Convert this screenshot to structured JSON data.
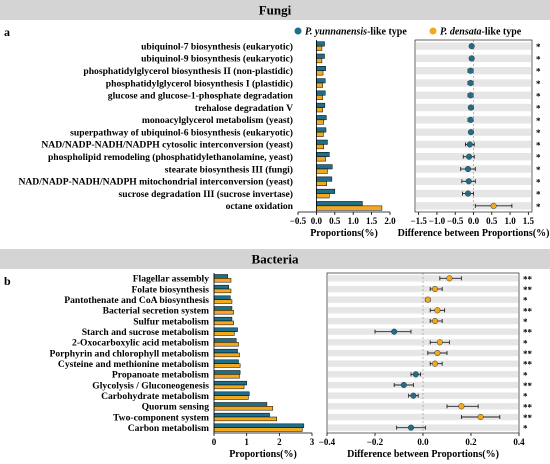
{
  "colors": {
    "yunnanensis": "#1F6F8B",
    "densata": "#F2A91E",
    "header_bg": "#D4D4D4",
    "stripe": "#E6E6E6"
  },
  "legend": {
    "yunnanensis": "P. yunnanensis",
    "yunnanensis_suffix": "-like type",
    "densata": "P. densata",
    "densata_suffix": "-like type"
  },
  "chart_data": [
    {
      "type": "bar",
      "title": "Fungi",
      "panel_label": "a",
      "xlabel_left": "Proportions(%)",
      "xlabel_right": "Difference between Proportions(%)",
      "left_xlim": [
        -0.5,
        2.0
      ],
      "left_ticks": [
        "−0.5",
        "0.0",
        "0.5",
        "1.0",
        "1.5",
        "2.0"
      ],
      "left_tick_values": [
        -0.5,
        0.0,
        0.5,
        1.0,
        1.5,
        2.0
      ],
      "right_xlim": [
        -1.6,
        1.6
      ],
      "right_ticks": [
        "−1.5",
        "−1.0",
        "−0.5",
        "0.0",
        "0.5",
        "1.0",
        "1.5"
      ],
      "right_tick_values": [
        -1.5,
        -1.0,
        -0.5,
        0.0,
        0.5,
        1.0,
        1.5
      ],
      "categories": [
        "ubiquinol-7 biosynthesis (eukaryotic)",
        "ubiquinol-9 biosynthesis (eukaryotic)",
        "phosphatidylglycerol biosynthesis II (non-plastidic)",
        "phosphatidylglycerol biosynthesis I (plastidic)",
        "glucose and glucose-1-phosphate degradation",
        "trehalose degradation V",
        "monoacylglycerol metabolism (yeast)",
        "superpathway of ubiquinol-6 biosynthesis (eukaryotic)",
        "NAD/NADP-NADH/NADPH cytosolic interconversion (yeast)",
        "phospholipid remodeling (phosphatidylethanolamine, yeast)",
        "stearate biosynthesis III (fungi)",
        "NAD/NADP-NADH/NADPH mitochondrial interconversion (yeast)",
        "sucrose degradation III (sucrose invertase)",
        "octane oxidation"
      ],
      "series": [
        {
          "name": "P. yunnanensis-like type",
          "values": [
            0.22,
            0.22,
            0.25,
            0.24,
            0.24,
            0.23,
            0.27,
            0.26,
            0.3,
            0.35,
            0.43,
            0.42,
            0.5,
            1.25
          ]
        },
        {
          "name": "P. densata-like type",
          "values": [
            0.15,
            0.15,
            0.18,
            0.17,
            0.17,
            0.17,
            0.2,
            0.19,
            0.2,
            0.25,
            0.3,
            0.28,
            0.35,
            1.78
          ]
        }
      ],
      "difference": [
        -0.05,
        -0.05,
        -0.08,
        -0.08,
        -0.08,
        -0.07,
        -0.08,
        -0.07,
        -0.1,
        -0.12,
        -0.15,
        -0.13,
        -0.15,
        0.55
      ],
      "ci_low": [
        -0.1,
        -0.1,
        -0.15,
        -0.15,
        -0.15,
        -0.13,
        -0.15,
        -0.12,
        -0.22,
        -0.28,
        -0.35,
        -0.32,
        -0.3,
        0.05
      ],
      "ci_high": [
        0.0,
        0.0,
        -0.02,
        -0.02,
        -0.02,
        -0.01,
        -0.02,
        -0.02,
        0.02,
        0.02,
        0.05,
        0.05,
        0.0,
        1.05
      ],
      "higher_group": [
        "y",
        "y",
        "y",
        "y",
        "y",
        "y",
        "y",
        "y",
        "y",
        "y",
        "y",
        "y",
        "y",
        "d"
      ],
      "significance": [
        "*",
        "*",
        "*",
        "*",
        "*",
        "*",
        "*",
        "*",
        "*",
        "*",
        "*",
        "*",
        "*",
        "*"
      ]
    },
    {
      "type": "bar",
      "title": "Bacteria",
      "panel_label": "b",
      "xlabel_left": "Proportions(%)",
      "xlabel_right": "Difference between Proportions(%)",
      "left_xlim": [
        0,
        3
      ],
      "left_ticks": [
        "0",
        "1",
        "2",
        "3"
      ],
      "left_tick_values": [
        0,
        1,
        2,
        3
      ],
      "right_xlim": [
        -0.4,
        0.4
      ],
      "right_ticks": [
        "−0.4",
        "−0.2",
        "0.0",
        "0.2",
        "0.4"
      ],
      "right_tick_values": [
        -0.4,
        -0.2,
        0.0,
        0.2,
        0.4
      ],
      "categories": [
        "Flagellar assembly",
        "Folate biosynthesis",
        "Pantothenate and CoA biosynthesis",
        "Bacterial secretion system",
        "Sulfur metabolism",
        "Starch and sucrose metabolism",
        "2-Oxocarboxylic acid metabolism",
        "Porphyrin and chlorophyll metabolism",
        "Cysteine and methionine metabolism",
        "Propanoate metabolism",
        "Glycolysis / Gluconeogenesis",
        "Carbohydrate metabolism",
        "Quorum sensing",
        "Two-component system",
        "Carbon metabolism"
      ],
      "series": [
        {
          "name": "P. yunnanensis-like type",
          "values": [
            0.42,
            0.45,
            0.5,
            0.55,
            0.55,
            0.72,
            0.68,
            0.72,
            0.75,
            0.8,
            1.0,
            1.08,
            1.62,
            1.7,
            2.75
          ]
        },
        {
          "name": "P. densata-like type",
          "values": [
            0.52,
            0.52,
            0.55,
            0.6,
            0.6,
            0.62,
            0.75,
            0.78,
            0.8,
            0.78,
            0.92,
            1.05,
            1.8,
            1.92,
            2.7
          ]
        }
      ],
      "difference": [
        0.11,
        0.05,
        0.02,
        0.06,
        0.05,
        -0.12,
        0.07,
        0.06,
        0.05,
        -0.03,
        -0.08,
        -0.04,
        0.16,
        0.24,
        -0.05
      ],
      "ci_low": [
        0.07,
        0.03,
        0.01,
        0.03,
        0.03,
        -0.2,
        0.03,
        0.02,
        0.03,
        -0.05,
        -0.12,
        -0.06,
        0.1,
        0.16,
        -0.11
      ],
      "ci_high": [
        0.16,
        0.08,
        0.03,
        0.09,
        0.08,
        -0.05,
        0.11,
        0.1,
        0.08,
        -0.01,
        -0.04,
        -0.02,
        0.23,
        0.32,
        0.01
      ],
      "higher_group": [
        "d",
        "d",
        "d",
        "d",
        "d",
        "y",
        "d",
        "d",
        "d",
        "y",
        "y",
        "y",
        "d",
        "d",
        "y"
      ],
      "significance": [
        "**",
        "**",
        "*",
        "**",
        "*",
        "**",
        "*",
        "**",
        "**",
        "*",
        "**",
        "*",
        "**",
        "**",
        "*"
      ]
    }
  ]
}
